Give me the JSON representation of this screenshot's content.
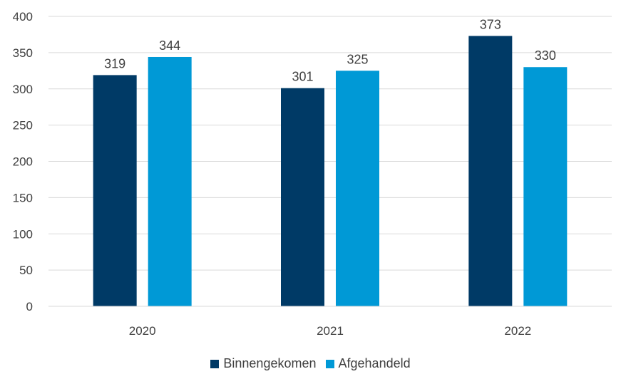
{
  "chart_data": {
    "type": "bar",
    "categories": [
      "2020",
      "2021",
      "2022"
    ],
    "series": [
      {
        "name": "Binnengekomen",
        "values": [
          319,
          301,
          373
        ],
        "color": "#003a66"
      },
      {
        "name": "Afgehandeld",
        "values": [
          344,
          325,
          330
        ],
        "color": "#0099d6"
      }
    ],
    "ylim": [
      0,
      400
    ],
    "yticks": [
      0,
      50,
      100,
      150,
      200,
      250,
      300,
      350,
      400
    ],
    "grid": true,
    "legend_position": "bottom",
    "title": "",
    "xlabel": "",
    "ylabel": ""
  }
}
